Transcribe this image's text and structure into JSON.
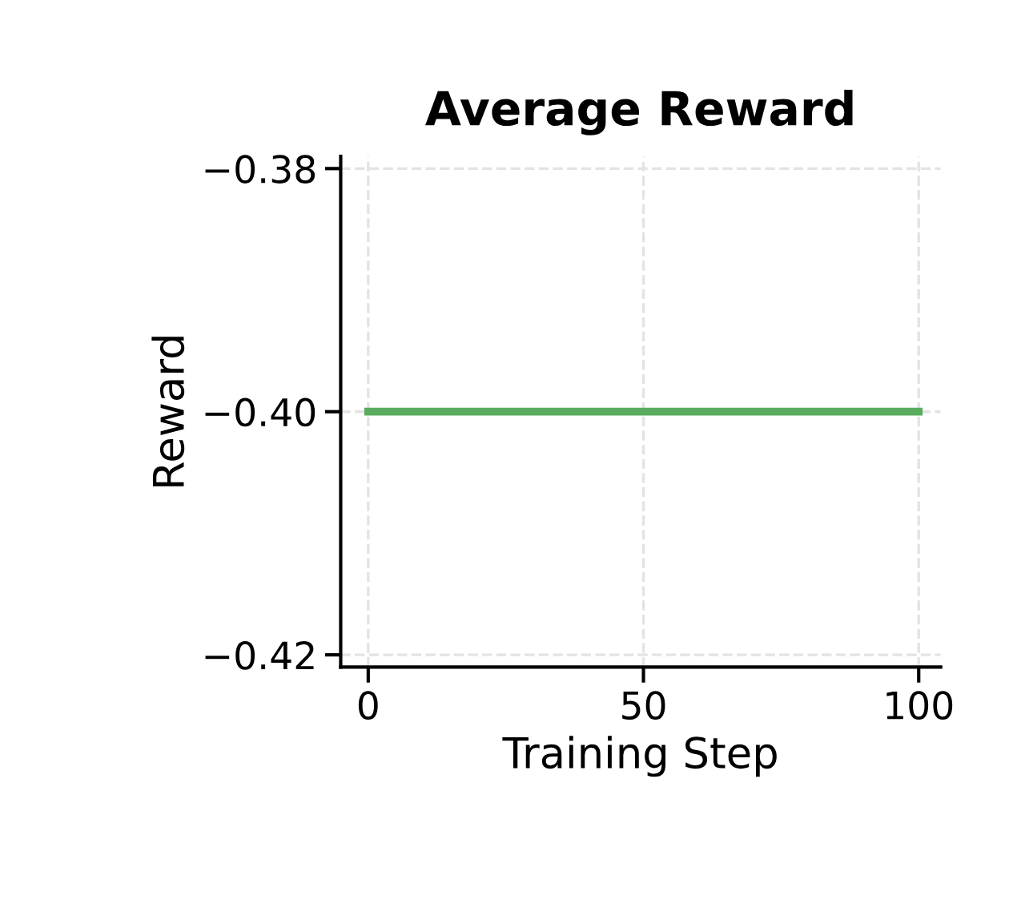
{
  "chart_data": {
    "type": "line",
    "title": "Average Reward",
    "xlabel": "Training Step",
    "ylabel": "Reward",
    "x": [
      0,
      100
    ],
    "series": [
      {
        "color": "#5aac5f",
        "values": [
          -0.4,
          -0.4
        ]
      }
    ],
    "xlim": [
      -5,
      104
    ],
    "ylim": [
      -0.421,
      -0.379
    ],
    "xticks": [
      0,
      50,
      100
    ],
    "yticks": [
      {
        "value": -0.42,
        "label": "−0.42"
      },
      {
        "value": -0.4,
        "label": "−0.40"
      },
      {
        "value": -0.38,
        "label": "−0.38"
      }
    ],
    "grid": true,
    "line_style": "solid",
    "marker": "none"
  }
}
